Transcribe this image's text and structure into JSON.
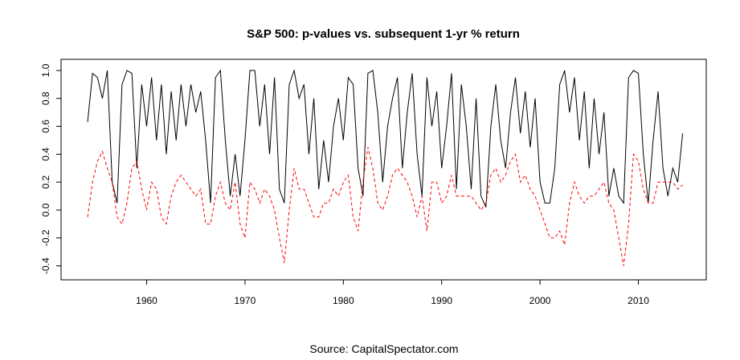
{
  "chart_data": {
    "type": "line",
    "title": "S&P 500: p-values vs. subsequent 1-yr % return",
    "caption": "Source: CapitalSpectator.com",
    "x": [
      1954,
      1954.5,
      1955,
      1955.5,
      1956,
      1956.5,
      1957,
      1957.5,
      1958,
      1958.5,
      1959,
      1959.5,
      1960,
      1960.5,
      1961,
      1961.5,
      1962,
      1962.5,
      1963,
      1963.5,
      1964,
      1964.5,
      1965,
      1965.5,
      1966,
      1966.5,
      1967,
      1967.5,
      1968,
      1968.5,
      1969,
      1969.5,
      1970,
      1970.5,
      1971,
      1971.5,
      1972,
      1972.5,
      1973,
      1973.5,
      1974,
      1974.5,
      1975,
      1975.5,
      1976,
      1976.5,
      1977,
      1977.5,
      1978,
      1978.5,
      1979,
      1979.5,
      1980,
      1980.5,
      1981,
      1981.5,
      1982,
      1982.5,
      1983,
      1983.5,
      1984,
      1984.5,
      1985,
      1985.5,
      1986,
      1986.5,
      1987,
      1987.5,
      1988,
      1988.5,
      1989,
      1989.5,
      1990,
      1990.5,
      1991,
      1991.5,
      1992,
      1992.5,
      1993,
      1993.5,
      1994,
      1994.5,
      1995,
      1995.5,
      1996,
      1996.5,
      1997,
      1997.5,
      1998,
      1998.5,
      1999,
      1999.5,
      2000,
      2000.5,
      2001,
      2001.5,
      2002,
      2002.5,
      2003,
      2003.5,
      2004,
      2004.5,
      2005,
      2005.5,
      2006,
      2006.5,
      2007,
      2007.5,
      2008,
      2008.5,
      2009,
      2009.5,
      2010,
      2010.5,
      2011,
      2011.5,
      2012,
      2012.5,
      2013,
      2013.5,
      2014,
      2014.5
    ],
    "series": [
      {
        "color": "#000000",
        "dash": false,
        "values": [
          0.63,
          0.98,
          0.95,
          0.8,
          1.0,
          0.2,
          0.05,
          0.9,
          1.0,
          0.98,
          0.3,
          0.9,
          0.6,
          0.95,
          0.5,
          0.9,
          0.4,
          0.85,
          0.5,
          0.9,
          0.6,
          0.9,
          0.7,
          0.85,
          0.5,
          0.05,
          0.95,
          1.0,
          0.5,
          0.1,
          0.4,
          0.1,
          0.5,
          1.0,
          1.0,
          0.6,
          0.9,
          0.4,
          0.95,
          0.15,
          0.05,
          0.9,
          1.0,
          0.8,
          0.9,
          0.4,
          0.8,
          0.15,
          0.5,
          0.2,
          0.6,
          0.8,
          0.5,
          0.95,
          0.9,
          0.3,
          0.1,
          0.98,
          1.0,
          0.7,
          0.2,
          0.6,
          0.8,
          0.95,
          0.3,
          0.7,
          0.98,
          0.4,
          0.1,
          0.95,
          0.6,
          0.85,
          0.3,
          0.6,
          0.98,
          0.15,
          0.9,
          0.6,
          0.15,
          0.8,
          0.1,
          0.02,
          0.6,
          0.9,
          0.5,
          0.3,
          0.7,
          0.95,
          0.55,
          0.85,
          0.45,
          0.8,
          0.2,
          0.05,
          0.05,
          0.3,
          0.9,
          1.0,
          0.7,
          0.95,
          0.5,
          0.85,
          0.3,
          0.8,
          0.4,
          0.7,
          0.1,
          0.3,
          0.1,
          0.05,
          0.95,
          1.0,
          0.98,
          0.4,
          0.05,
          0.5,
          0.85,
          0.3,
          0.1,
          0.3,
          0.2,
          0.55
        ]
      },
      {
        "color": "#ff0000",
        "dash": true,
        "values": [
          -0.05,
          0.2,
          0.35,
          0.42,
          0.3,
          0.2,
          -0.05,
          -0.1,
          0.05,
          0.3,
          0.35,
          0.15,
          0.0,
          0.2,
          0.15,
          -0.05,
          -0.1,
          0.1,
          0.2,
          0.25,
          0.2,
          0.15,
          0.1,
          0.15,
          -0.1,
          -0.1,
          0.1,
          0.2,
          0.05,
          0.0,
          0.2,
          -0.1,
          -0.2,
          0.2,
          0.15,
          0.05,
          0.15,
          0.1,
          0.0,
          -0.2,
          -0.38,
          0.0,
          0.3,
          0.15,
          0.15,
          0.05,
          -0.05,
          -0.05,
          0.05,
          0.05,
          0.15,
          0.1,
          0.2,
          0.25,
          -0.05,
          -0.15,
          0.2,
          0.45,
          0.3,
          0.05,
          0.0,
          0.1,
          0.25,
          0.3,
          0.25,
          0.2,
          0.1,
          -0.05,
          0.1,
          -0.15,
          0.2,
          0.2,
          0.05,
          0.1,
          0.25,
          0.1,
          0.1,
          0.1,
          0.1,
          0.05,
          0.0,
          0.05,
          0.25,
          0.3,
          0.2,
          0.25,
          0.35,
          0.4,
          0.2,
          0.25,
          0.15,
          0.1,
          0.0,
          -0.1,
          -0.2,
          -0.2,
          -0.15,
          -0.25,
          0.05,
          0.2,
          0.1,
          0.05,
          0.1,
          0.1,
          0.15,
          0.2,
          0.05,
          0.0,
          -0.2,
          -0.4,
          -0.1,
          0.4,
          0.35,
          0.15,
          0.05,
          0.05,
          0.2,
          0.2,
          0.2,
          0.2,
          0.15,
          0.18
        ]
      }
    ],
    "xlim": [
      1951.3,
      2016.9
    ],
    "xticks": [
      1960,
      1970,
      1980,
      1990,
      2000,
      2010
    ],
    "ylim": [
      -0.5,
      1.08
    ],
    "yticks": [
      -0.4,
      -0.2,
      {
        "value": 0,
        "label": "0.0"
      },
      0.2,
      0.4,
      0.6,
      0.8,
      {
        "value": 1,
        "label": "1.0"
      }
    ]
  }
}
